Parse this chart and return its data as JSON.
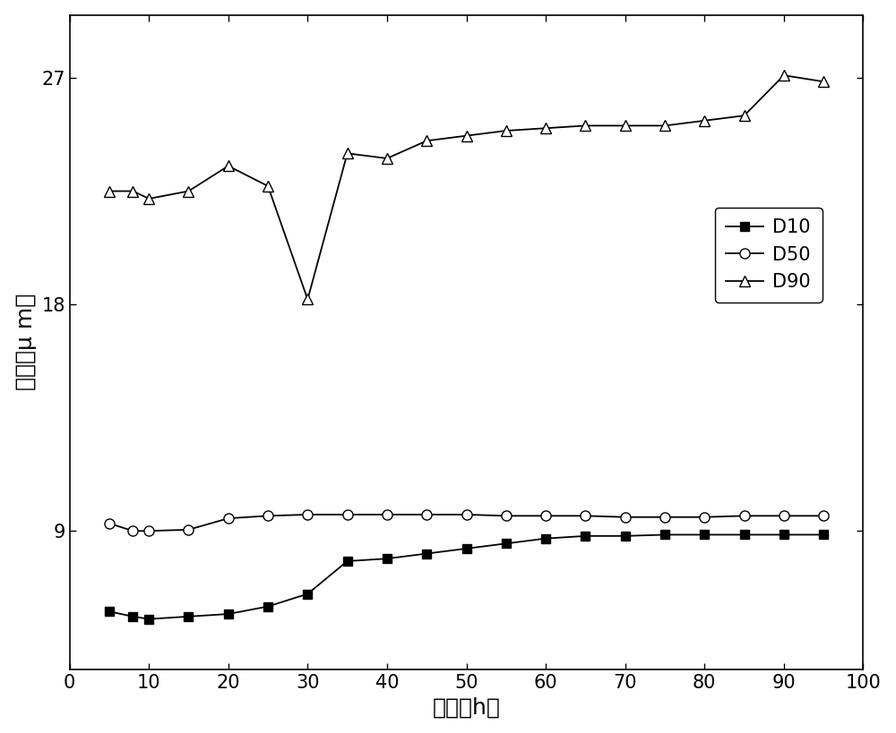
{
  "title": "",
  "xlabel": "时间（h）",
  "ylabel": "粒径（μ m）",
  "xlim": [
    0,
    100
  ],
  "yticks": [
    9,
    18,
    27
  ],
  "xticks": [
    0,
    10,
    20,
    30,
    40,
    50,
    60,
    70,
    80,
    90,
    100
  ],
  "ylim": [
    3.5,
    29.5
  ],
  "D10_x": [
    5,
    8,
    10,
    15,
    20,
    25,
    30,
    35,
    40,
    45,
    50,
    55,
    60,
    65,
    70,
    75,
    80,
    85,
    90,
    95
  ],
  "D10_y": [
    5.8,
    5.6,
    5.5,
    5.6,
    5.7,
    6.0,
    6.5,
    7.8,
    7.9,
    8.1,
    8.3,
    8.5,
    8.7,
    8.8,
    8.8,
    8.85,
    8.85,
    8.85,
    8.85,
    8.85
  ],
  "D50_x": [
    5,
    8,
    10,
    15,
    20,
    25,
    30,
    35,
    40,
    45,
    50,
    55,
    60,
    65,
    70,
    75,
    80,
    85,
    90,
    95
  ],
  "D50_y": [
    9.3,
    9.0,
    9.0,
    9.05,
    9.5,
    9.6,
    9.65,
    9.65,
    9.65,
    9.65,
    9.65,
    9.6,
    9.6,
    9.6,
    9.55,
    9.55,
    9.55,
    9.6,
    9.6,
    9.6
  ],
  "D90_x": [
    5,
    8,
    10,
    15,
    20,
    25,
    30,
    35,
    40,
    45,
    50,
    55,
    60,
    65,
    70,
    75,
    80,
    85,
    90,
    95
  ],
  "D90_y": [
    22.5,
    22.5,
    22.2,
    22.5,
    23.5,
    22.7,
    18.2,
    24.0,
    23.8,
    24.5,
    24.7,
    24.9,
    25.0,
    25.1,
    25.1,
    25.1,
    25.3,
    25.5,
    27.1,
    26.85
  ],
  "legend_labels": [
    "D10",
    "D50",
    "D90"
  ],
  "line_color": "black",
  "bg_color": "white"
}
